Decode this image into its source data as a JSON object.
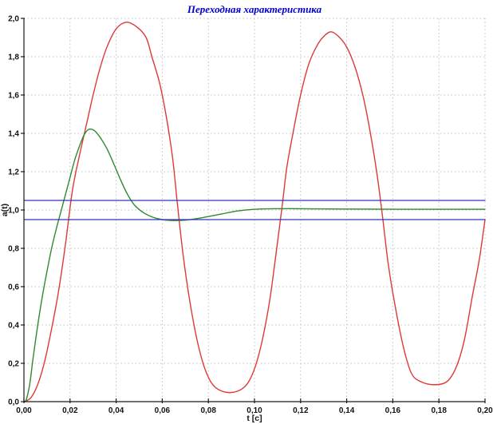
{
  "chart_data": {
    "type": "line",
    "title": "Переходная характеристика",
    "title_color": "#0000cc",
    "xlabel": "t [c]",
    "ylabel": "a(t)",
    "xlim": [
      0,
      0.2
    ],
    "ylim": [
      0,
      2.0
    ],
    "grid": true,
    "grid_style": "dotted",
    "grid_color": "#c0c0c0",
    "axis_color": "#1a1a1a",
    "legend": "none",
    "x_axis": {
      "label": "t [c]",
      "tick_values": [
        0,
        0.02,
        0.04,
        0.06,
        0.08,
        0.1,
        0.12,
        0.14,
        0.16,
        0.18,
        0.2
      ],
      "tick_labels": [
        "0,00",
        "0,02",
        "0,04",
        "0,06",
        "0,08",
        "0,10",
        "0,12",
        "0,14",
        "0,16",
        "0,18",
        "0,20"
      ]
    },
    "y_axis": {
      "label": "a(t)",
      "tick_values": [
        0,
        0.2,
        0.4,
        0.6,
        0.8,
        1.0,
        1.2,
        1.4,
        1.6,
        1.8,
        2.0
      ],
      "tick_labels": [
        "0,0",
        "0,2",
        "0,4",
        "0,6",
        "0,8",
        "1,0",
        "1,2",
        "1,4",
        "1,6",
        "1,8",
        "2,0"
      ]
    },
    "series": [
      {
        "name": "oscillatory-response-red",
        "color": "#e03838",
        "width": 1.4,
        "smooth": true,
        "x": [
          0.0,
          0.003,
          0.006,
          0.009,
          0.012,
          0.015,
          0.018,
          0.021,
          0.024,
          0.027,
          0.03,
          0.033,
          0.036,
          0.04,
          0.0445,
          0.049,
          0.053,
          0.0555,
          0.059,
          0.062,
          0.0645,
          0.0665,
          0.069,
          0.072,
          0.0755,
          0.079,
          0.083,
          0.0893,
          0.0955,
          0.0995,
          0.103,
          0.1065,
          0.109,
          0.1121,
          0.114,
          0.117,
          0.12,
          0.1235,
          0.127,
          0.13,
          0.1332,
          0.1365,
          0.14,
          0.1435,
          0.147,
          0.15,
          0.153,
          0.1555,
          0.158,
          0.161,
          0.1645,
          0.168,
          0.172,
          0.178,
          0.1835,
          0.1875,
          0.191,
          0.1945,
          0.1975,
          0.2
        ],
        "y": [
          0.0,
          0.02,
          0.09,
          0.21,
          0.38,
          0.575,
          0.82,
          1.1,
          1.28,
          1.44,
          1.6,
          1.74,
          1.85,
          1.945,
          1.98,
          1.955,
          1.9,
          1.8,
          1.655,
          1.47,
          1.27,
          1.04,
          0.77,
          0.52,
          0.3,
          0.155,
          0.075,
          0.047,
          0.075,
          0.155,
          0.3,
          0.52,
          0.74,
          1.03,
          1.22,
          1.42,
          1.6,
          1.76,
          1.855,
          1.905,
          1.93,
          1.905,
          1.85,
          1.75,
          1.6,
          1.42,
          1.2,
          0.97,
          0.72,
          0.5,
          0.29,
          0.15,
          0.105,
          0.088,
          0.105,
          0.18,
          0.32,
          0.55,
          0.74,
          0.95
        ]
      },
      {
        "name": "damped-response-green",
        "color": "#2d8a2d",
        "width": 1.4,
        "smooth": true,
        "x": [
          0.0,
          0.001,
          0.0025,
          0.004,
          0.006,
          0.008,
          0.01,
          0.012,
          0.014,
          0.016,
          0.018,
          0.02,
          0.022,
          0.024,
          0.026,
          0.028,
          0.0305,
          0.033,
          0.036,
          0.039,
          0.042,
          0.045,
          0.048,
          0.052,
          0.056,
          0.06,
          0.065,
          0.07,
          0.075,
          0.08,
          0.086,
          0.092,
          0.098,
          0.105,
          0.115,
          0.125,
          0.14,
          0.16,
          0.18,
          0.2
        ],
        "y": [
          0.0,
          0.01,
          0.09,
          0.23,
          0.4,
          0.55,
          0.68,
          0.8,
          0.9,
          0.99,
          1.08,
          1.17,
          1.26,
          1.33,
          1.39,
          1.42,
          1.415,
          1.38,
          1.32,
          1.24,
          1.155,
          1.08,
          1.025,
          0.985,
          0.962,
          0.95,
          0.945,
          0.947,
          0.955,
          0.966,
          0.98,
          0.994,
          1.002,
          1.006,
          1.007,
          1.006,
          1.005,
          1.004,
          1.004,
          1.004
        ]
      },
      {
        "name": "tolerance-band-upper",
        "color": "#3333bb",
        "width": 1.3,
        "smooth": false,
        "x": [
          0.0,
          0.2
        ],
        "y": [
          1.05,
          1.05
        ]
      },
      {
        "name": "tolerance-band-lower",
        "color": "#3333bb",
        "width": 1.3,
        "smooth": false,
        "x": [
          0.0,
          0.2
        ],
        "y": [
          0.95,
          0.95
        ]
      }
    ]
  }
}
